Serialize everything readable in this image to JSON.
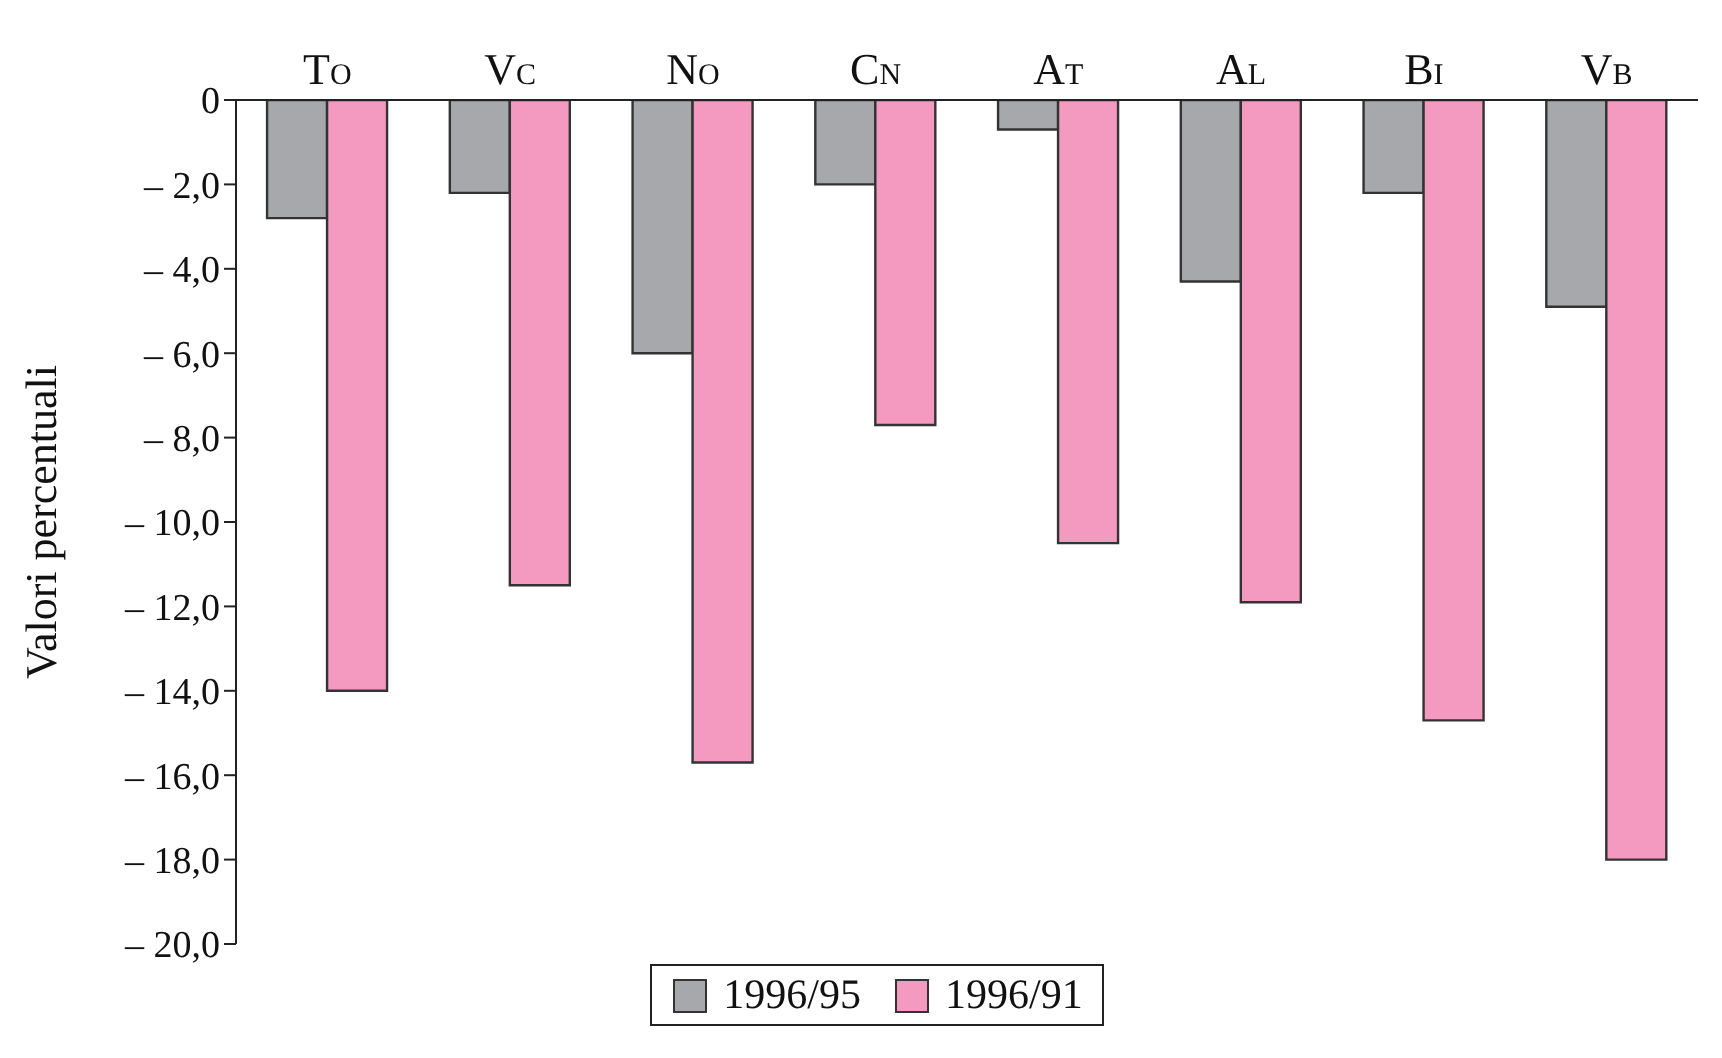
{
  "chart_data": {
    "type": "bar",
    "ylabel": "Valori percentuali",
    "categories": [
      "To",
      "Vc",
      "No",
      "Cn",
      "At",
      "Al",
      "Bi",
      "Vb"
    ],
    "series": [
      {
        "name": "1996/95",
        "color": "#a7a8ab",
        "values": [
          -2.8,
          -2.2,
          -6.0,
          -2.0,
          -0.7,
          -4.3,
          -2.2,
          -4.9
        ]
      },
      {
        "name": "1996/91",
        "color": "#f49ac1",
        "values": [
          -14.0,
          -11.5,
          -15.7,
          -7.7,
          -10.5,
          -11.9,
          -14.7,
          -18.0
        ]
      }
    ],
    "ylim": [
      -20,
      0
    ],
    "yticks": [
      0,
      {
        "value": -2,
        "label": "– 2,0"
      },
      {
        "value": -4,
        "label": "– 4,0"
      },
      {
        "value": -6,
        "label": "– 6,0"
      },
      {
        "value": -8,
        "label": "– 8,0"
      },
      {
        "value": -10,
        "label": "– 10,0"
      },
      {
        "value": -12,
        "label": "– 12,0"
      },
      {
        "value": -14,
        "label": "– 14,0"
      },
      {
        "value": -16,
        "label": "– 16,0"
      },
      {
        "value": -18,
        "label": "– 18,0"
      },
      {
        "value": -20,
        "label": "– 20,0"
      }
    ],
    "grid": false,
    "legend": "bottom"
  }
}
